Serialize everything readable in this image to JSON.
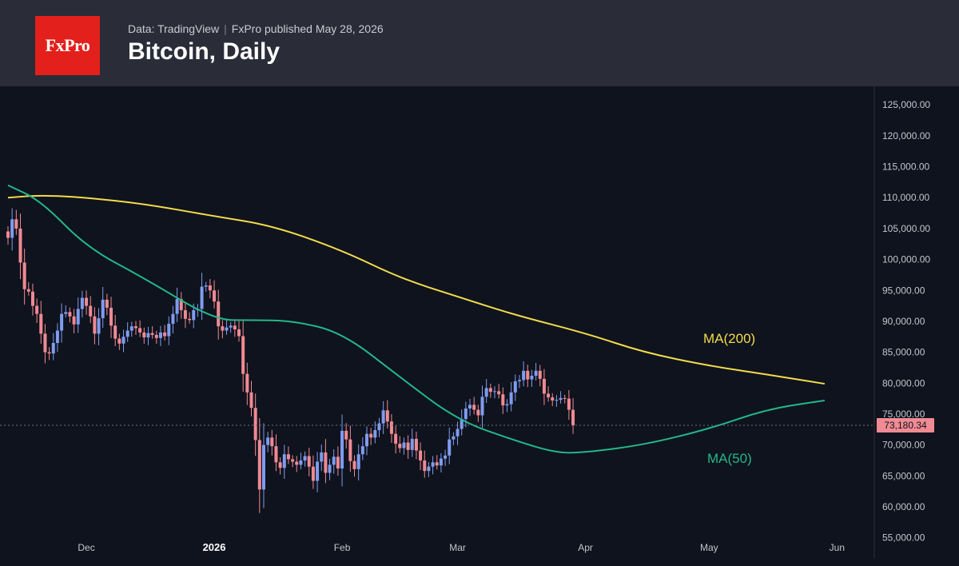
{
  "header": {
    "logo_text": "FxPro",
    "source": "Data: TradingView",
    "separator": "|",
    "published": "FxPro published May 28, 2026",
    "title": "Bitcoin, Daily"
  },
  "colors": {
    "up": "#7f9cf0",
    "down": "#f08a93",
    "ma200": "#f2dc4c",
    "ma50": "#23b78a",
    "price_tag": "#f08a93",
    "axis_text": "#c3c6cd"
  },
  "chart_data": {
    "type": "candlestick",
    "title": "Bitcoin, Daily",
    "ylim": [
      52500,
      128000
    ],
    "yticks": [
      55000,
      60000,
      65000,
      70000,
      75000,
      80000,
      85000,
      90000,
      95000,
      100000,
      105000,
      110000,
      115000,
      120000,
      125000
    ],
    "ytick_labels": [
      "55,000.00",
      "60,000.00",
      "65,000.00",
      "70,000.00",
      "75,000.00",
      "80,000.00",
      "85,000.00",
      "90,000.00",
      "95,000.00",
      "100,000.00",
      "105,000.00",
      "110,000.00",
      "115,000.00",
      "120,000.00",
      "125,000.00"
    ],
    "xlim": [
      "2025-11-12",
      "2026-06-05"
    ],
    "x_ticks": [
      {
        "date": "2025-12-01",
        "label": "Dec",
        "bold": false
      },
      {
        "date": "2026-01-01",
        "label": "2026",
        "bold": true
      },
      {
        "date": "2026-02-01",
        "label": "Feb",
        "bold": false
      },
      {
        "date": "2026-03-01",
        "label": "Mar",
        "bold": false
      },
      {
        "date": "2026-04-01",
        "label": "Apr",
        "bold": false
      },
      {
        "date": "2026-05-01",
        "label": "May",
        "bold": false
      },
      {
        "date": "2026-06-01",
        "label": "Jun",
        "bold": false
      }
    ],
    "last_price": 73180.34,
    "last_price_label": "73,180.34",
    "candles": {
      "start_date": "2025-11-12",
      "close": [
        103500,
        106500,
        105000,
        99500,
        95200,
        94800,
        92500,
        91200,
        88000,
        85000,
        84800,
        86500,
        88500,
        91200,
        91500,
        90800,
        89500,
        92000,
        93800,
        92500,
        90800,
        88000,
        90500,
        93500,
        92200,
        89300,
        87200,
        86400,
        87500,
        88500,
        89200,
        88900,
        88200,
        87400,
        88100,
        87800,
        87300,
        88200,
        87600,
        89600,
        91200,
        93600,
        91800,
        90400,
        90200,
        91800,
        92000,
        95600,
        95800,
        95000,
        93200,
        89200,
        88500,
        89000,
        89300,
        88700,
        87600,
        81500,
        78500,
        76000,
        70800,
        62800,
        70000,
        71200,
        69800,
        67200,
        66300,
        68500,
        67700,
        67300,
        66800,
        67500,
        68200,
        66500,
        64200,
        67300,
        68800,
        65500,
        66800,
        68100,
        66200,
        72300,
        70900,
        67400,
        66100,
        68500,
        69800,
        71800,
        71200,
        72400,
        73500,
        75600,
        73800,
        71800,
        70200,
        69500,
        70400,
        69200,
        71000,
        69100,
        67500,
        65800,
        66500,
        67200,
        66700,
        67800,
        68300,
        70900,
        71400,
        72600,
        74200,
        75900,
        76500,
        75700,
        74800,
        77800,
        79200,
        78600,
        78700,
        78200,
        76400,
        76600,
        78500,
        80300,
        80500,
        82000,
        80600,
        81200,
        82000,
        80700,
        78300,
        77700,
        77200,
        77300,
        77600,
        77500,
        75700,
        73180
      ]
    },
    "series": [
      {
        "name": "MA(200)",
        "x": [
          "2025-11-12",
          "2025-11-20",
          "2025-12-01",
          "2025-12-15",
          "2026-01-01",
          "2026-01-15",
          "2026-02-01",
          "2026-02-15",
          "2026-03-01",
          "2026-03-15",
          "2026-04-01",
          "2026-04-15",
          "2026-05-01",
          "2026-05-15",
          "2026-05-29"
        ],
        "y": [
          110000,
          110400,
          110000,
          109000,
          107000,
          105500,
          101500,
          97000,
          94000,
          91000,
          88100,
          85000,
          82800,
          81400,
          79900
        ]
      },
      {
        "name": "MA(50)",
        "x": [
          "2025-11-12",
          "2025-11-20",
          "2025-12-01",
          "2025-12-15",
          "2026-01-01",
          "2026-01-10",
          "2026-01-20",
          "2026-02-01",
          "2026-02-15",
          "2026-03-01",
          "2026-03-15",
          "2026-03-25",
          "2026-04-01",
          "2026-04-15",
          "2026-05-01",
          "2026-05-15",
          "2026-05-29"
        ],
        "y": [
          112000,
          109500,
          102000,
          97000,
          90200,
          90200,
          90100,
          88200,
          81000,
          74000,
          70700,
          68700,
          68800,
          70000,
          72600,
          75800,
          77200
        ]
      }
    ]
  }
}
